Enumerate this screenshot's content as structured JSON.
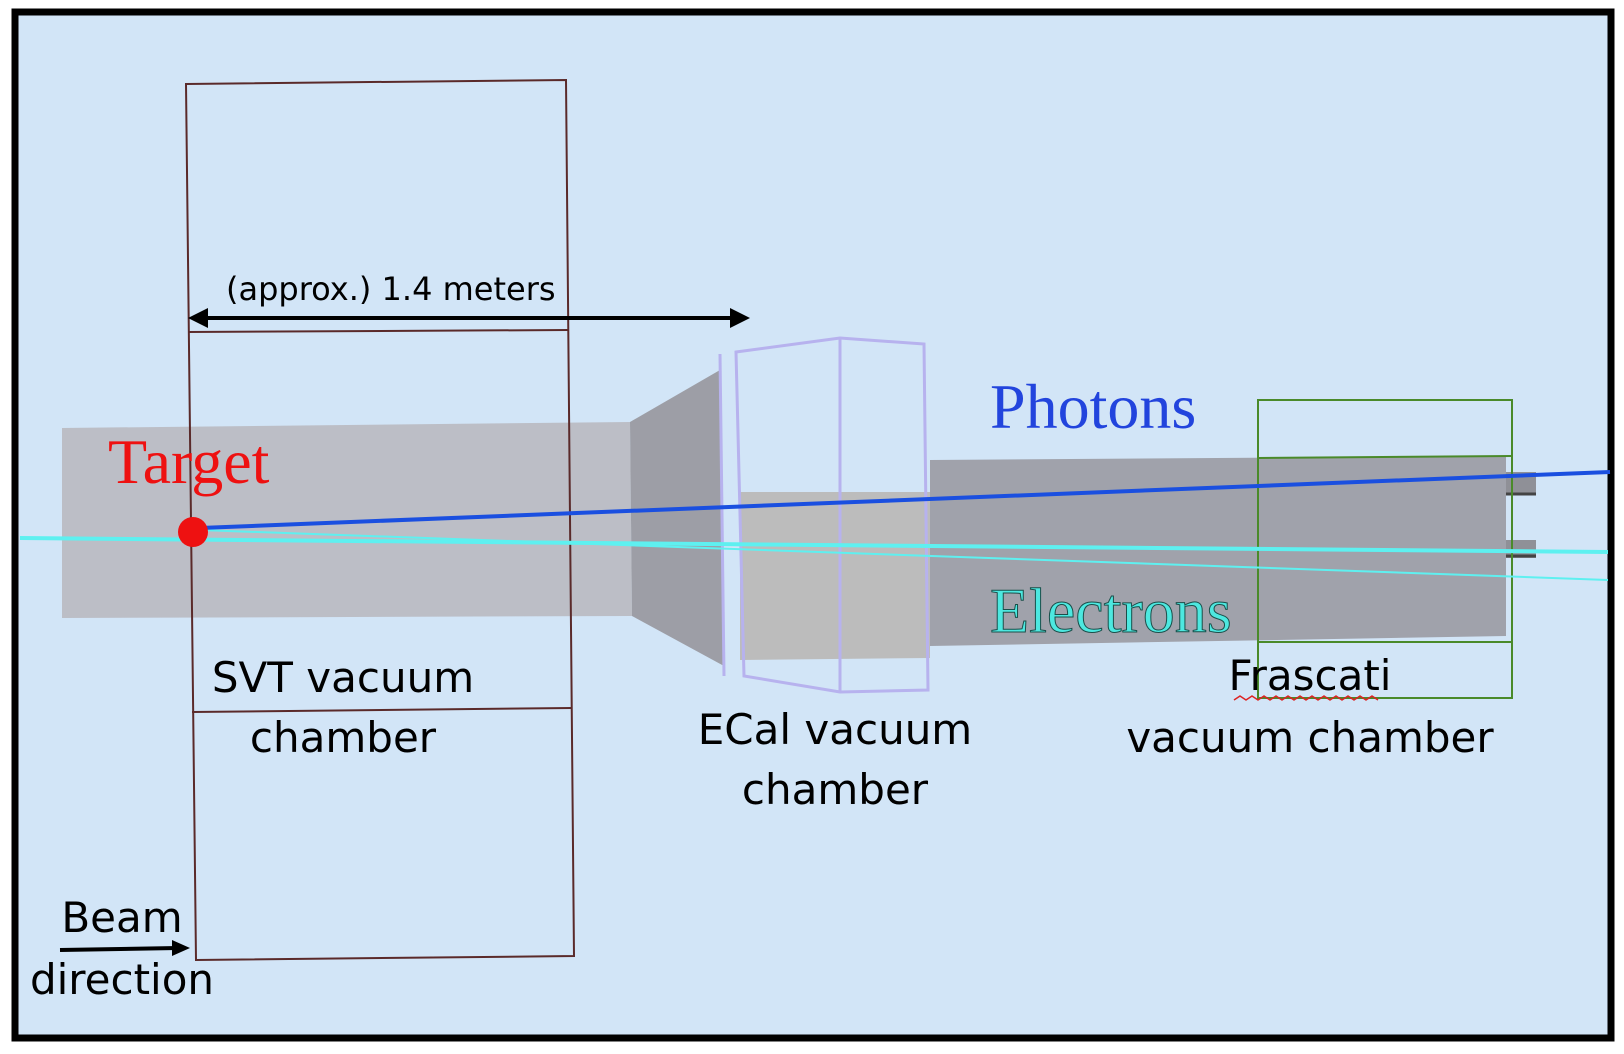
{
  "labels": {
    "dimension": "(approx.) 1.4 meters",
    "target": "Target",
    "photons": "Photons",
    "electrons": "Electrons",
    "svt_line1": "SVT vacuum",
    "svt_line2": "chamber",
    "ecal_line1": "ECal vacuum",
    "ecal_line2": "chamber",
    "frascati_line1": "Frascati",
    "frascati_line2": "vacuum chamber",
    "beam_line1": "Beam",
    "beam_line2": "direction"
  },
  "colors": {
    "background": "#d2e5f7",
    "frame": "#000000",
    "pipe": "#a0a2ab",
    "target": "#ee1111",
    "photons": "#2244dd",
    "photon_track": "#1a4fe0",
    "electrons": "#4de8e0",
    "electron_track": "#5ef0f0",
    "svt_outline": "#5a2a2a",
    "ecal_outline": "#b7b2ee",
    "frascati_outline": "#4a8a2a"
  }
}
